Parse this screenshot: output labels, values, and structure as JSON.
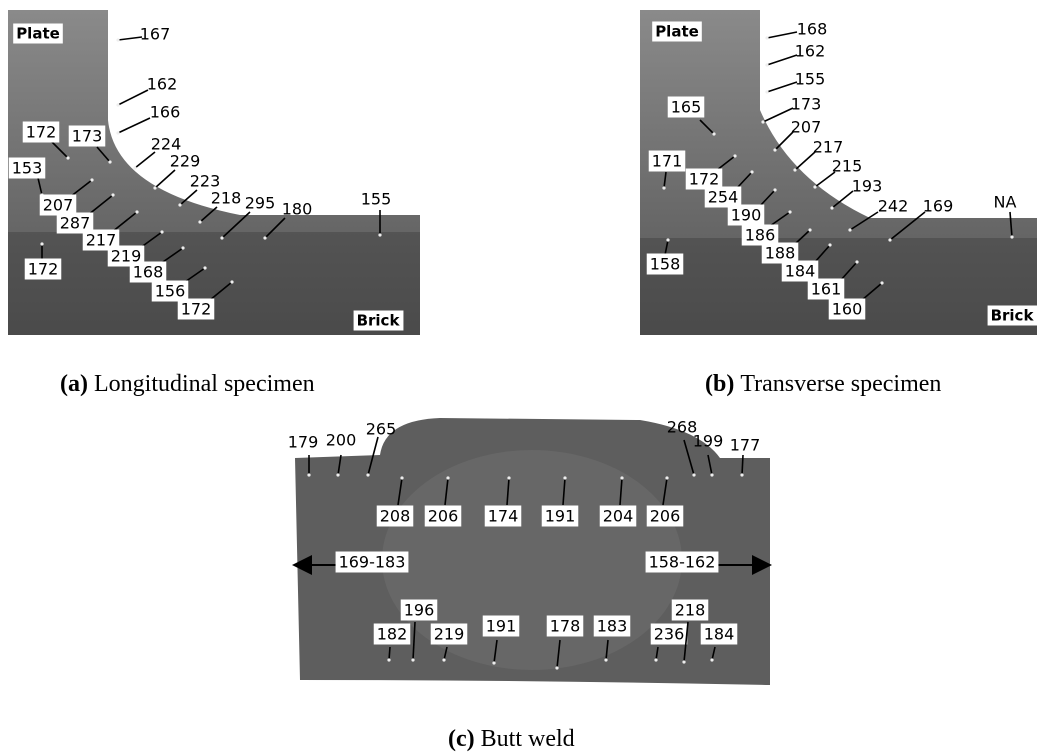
{
  "panels": [
    {
      "caption": {
        "letter": "(a)",
        "text": "Longitudinal specimen"
      },
      "plate_label": "Plate",
      "brick_label": "Brick",
      "hardness": [
        167,
        162,
        166,
        172,
        173,
        224,
        229,
        153,
        223,
        207,
        218,
        295,
        180,
        155,
        287,
        217,
        219,
        172,
        168,
        156,
        172
      ]
    },
    {
      "caption": {
        "letter": "(b)",
        "text": "Transverse specimen"
      },
      "plate_label": "Plate",
      "brick_label": "Brick",
      "hardness": [
        168,
        162,
        155,
        165,
        173,
        207,
        171,
        217,
        172,
        215,
        254,
        193,
        190,
        242,
        169,
        "NA",
        186,
        188,
        158,
        184,
        161,
        160
      ]
    },
    {
      "caption": {
        "letter": "(c)",
        "text": "Butt weld"
      },
      "hardness": [
        179,
        200,
        265,
        268,
        199,
        177,
        208,
        206,
        174,
        191,
        204,
        206,
        196,
        182,
        219,
        191,
        178,
        183,
        236,
        218,
        184
      ],
      "ranges": [
        "169-183",
        "158-162"
      ]
    }
  ]
}
